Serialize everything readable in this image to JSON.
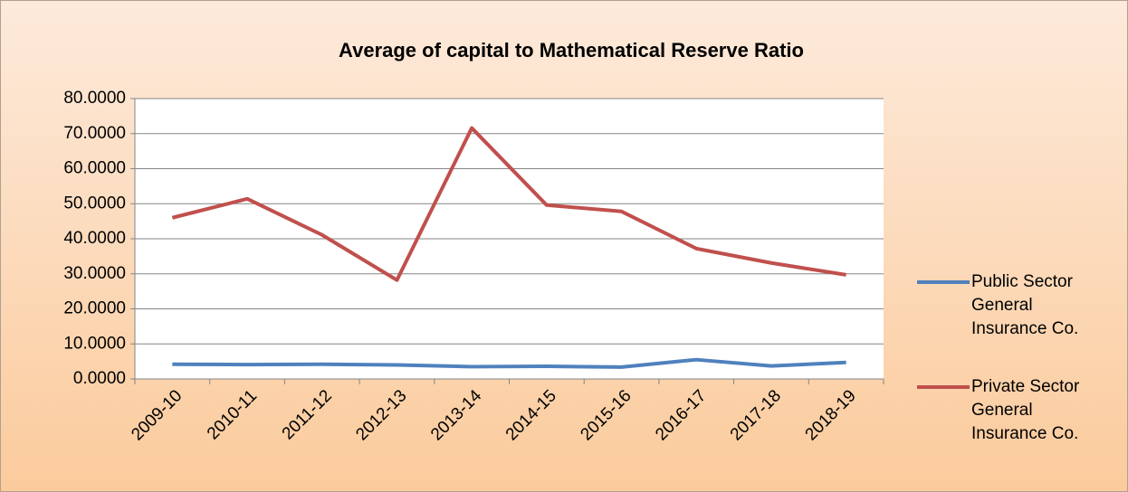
{
  "chart_data": {
    "type": "line",
    "title": "Average of capital to Mathematical Reserve Ratio",
    "categories": [
      "2009-10",
      "2010-11",
      "2011-12",
      "2012-13",
      "2013-14",
      "2014-15",
      "2015-16",
      "2016-17",
      "2017-18",
      "2018-19"
    ],
    "series": [
      {
        "name": "Public Sector General Insurance Co.",
        "color": "#4f81bd",
        "values": [
          4.2,
          4.1,
          4.2,
          4.0,
          3.5,
          3.6,
          3.4,
          5.5,
          3.7,
          4.7
        ]
      },
      {
        "name": "Private Sector General Insurance Co.",
        "color": "#c0504d",
        "values": [
          46.0,
          51.4,
          41.1,
          28.2,
          71.6,
          49.6,
          47.8,
          37.2,
          33.1,
          29.7
        ]
      }
    ],
    "ylim": [
      0,
      80
    ],
    "yticks": [
      {
        "value": 0,
        "label": "0.0000"
      },
      {
        "value": 10,
        "label": "10.0000"
      },
      {
        "value": 20,
        "label": "20.0000"
      },
      {
        "value": 30,
        "label": "30.0000"
      },
      {
        "value": 40,
        "label": "40.0000"
      },
      {
        "value": 50,
        "label": "50.0000"
      },
      {
        "value": 60,
        "label": "60.0000"
      },
      {
        "value": 70,
        "label": "70.0000"
      },
      {
        "value": 80,
        "label": "80.0000"
      }
    ],
    "grid": true,
    "legend": "right"
  }
}
